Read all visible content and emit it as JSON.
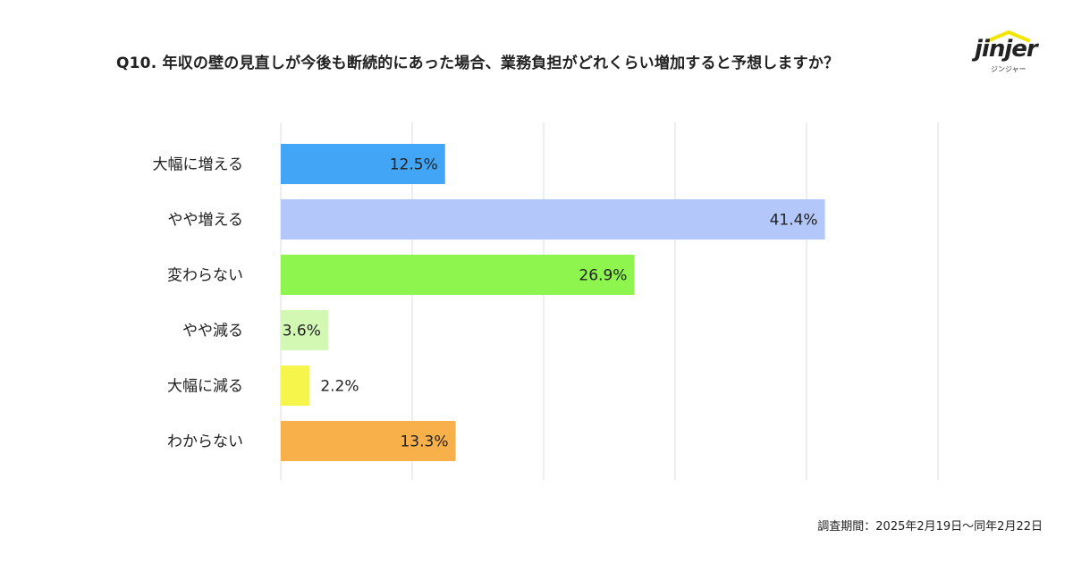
{
  "title": "Q10. 年収の壁の見直しが今後も断続的にあった場合、業務負担がどれくらい増加すると予想しますか？",
  "logo": {
    "text": "jinjer",
    "subtext": "ジンジャー",
    "accent": "#f2e600"
  },
  "footnote": "調査期間：2025年2月19日〜同年2月22日",
  "chart_data": {
    "type": "bar",
    "orientation": "horizontal",
    "title": "Q10. 年収の壁の見直しが今後も断続的にあった場合、業務負担がどれくらい増加すると予想しますか？",
    "categories": [
      "大幅に増える",
      "やや増える",
      "変わらない",
      "やや減る",
      "大幅に減る",
      "わからない"
    ],
    "values": [
      12.5,
      41.4,
      26.9,
      3.6,
      2.2,
      13.3
    ],
    "labels": [
      "12.5%",
      "41.4%",
      "26.9%",
      "3.6%",
      "2.2%",
      "13.3%"
    ],
    "colors": [
      "#42a5f5",
      "#b3c7fb",
      "#8ef44e",
      "#d3f8b3",
      "#f5f54c",
      "#f8b14a"
    ],
    "unit": "%",
    "xlim": [
      0,
      50
    ],
    "grid": true,
    "xlabel": "",
    "ylabel": ""
  }
}
